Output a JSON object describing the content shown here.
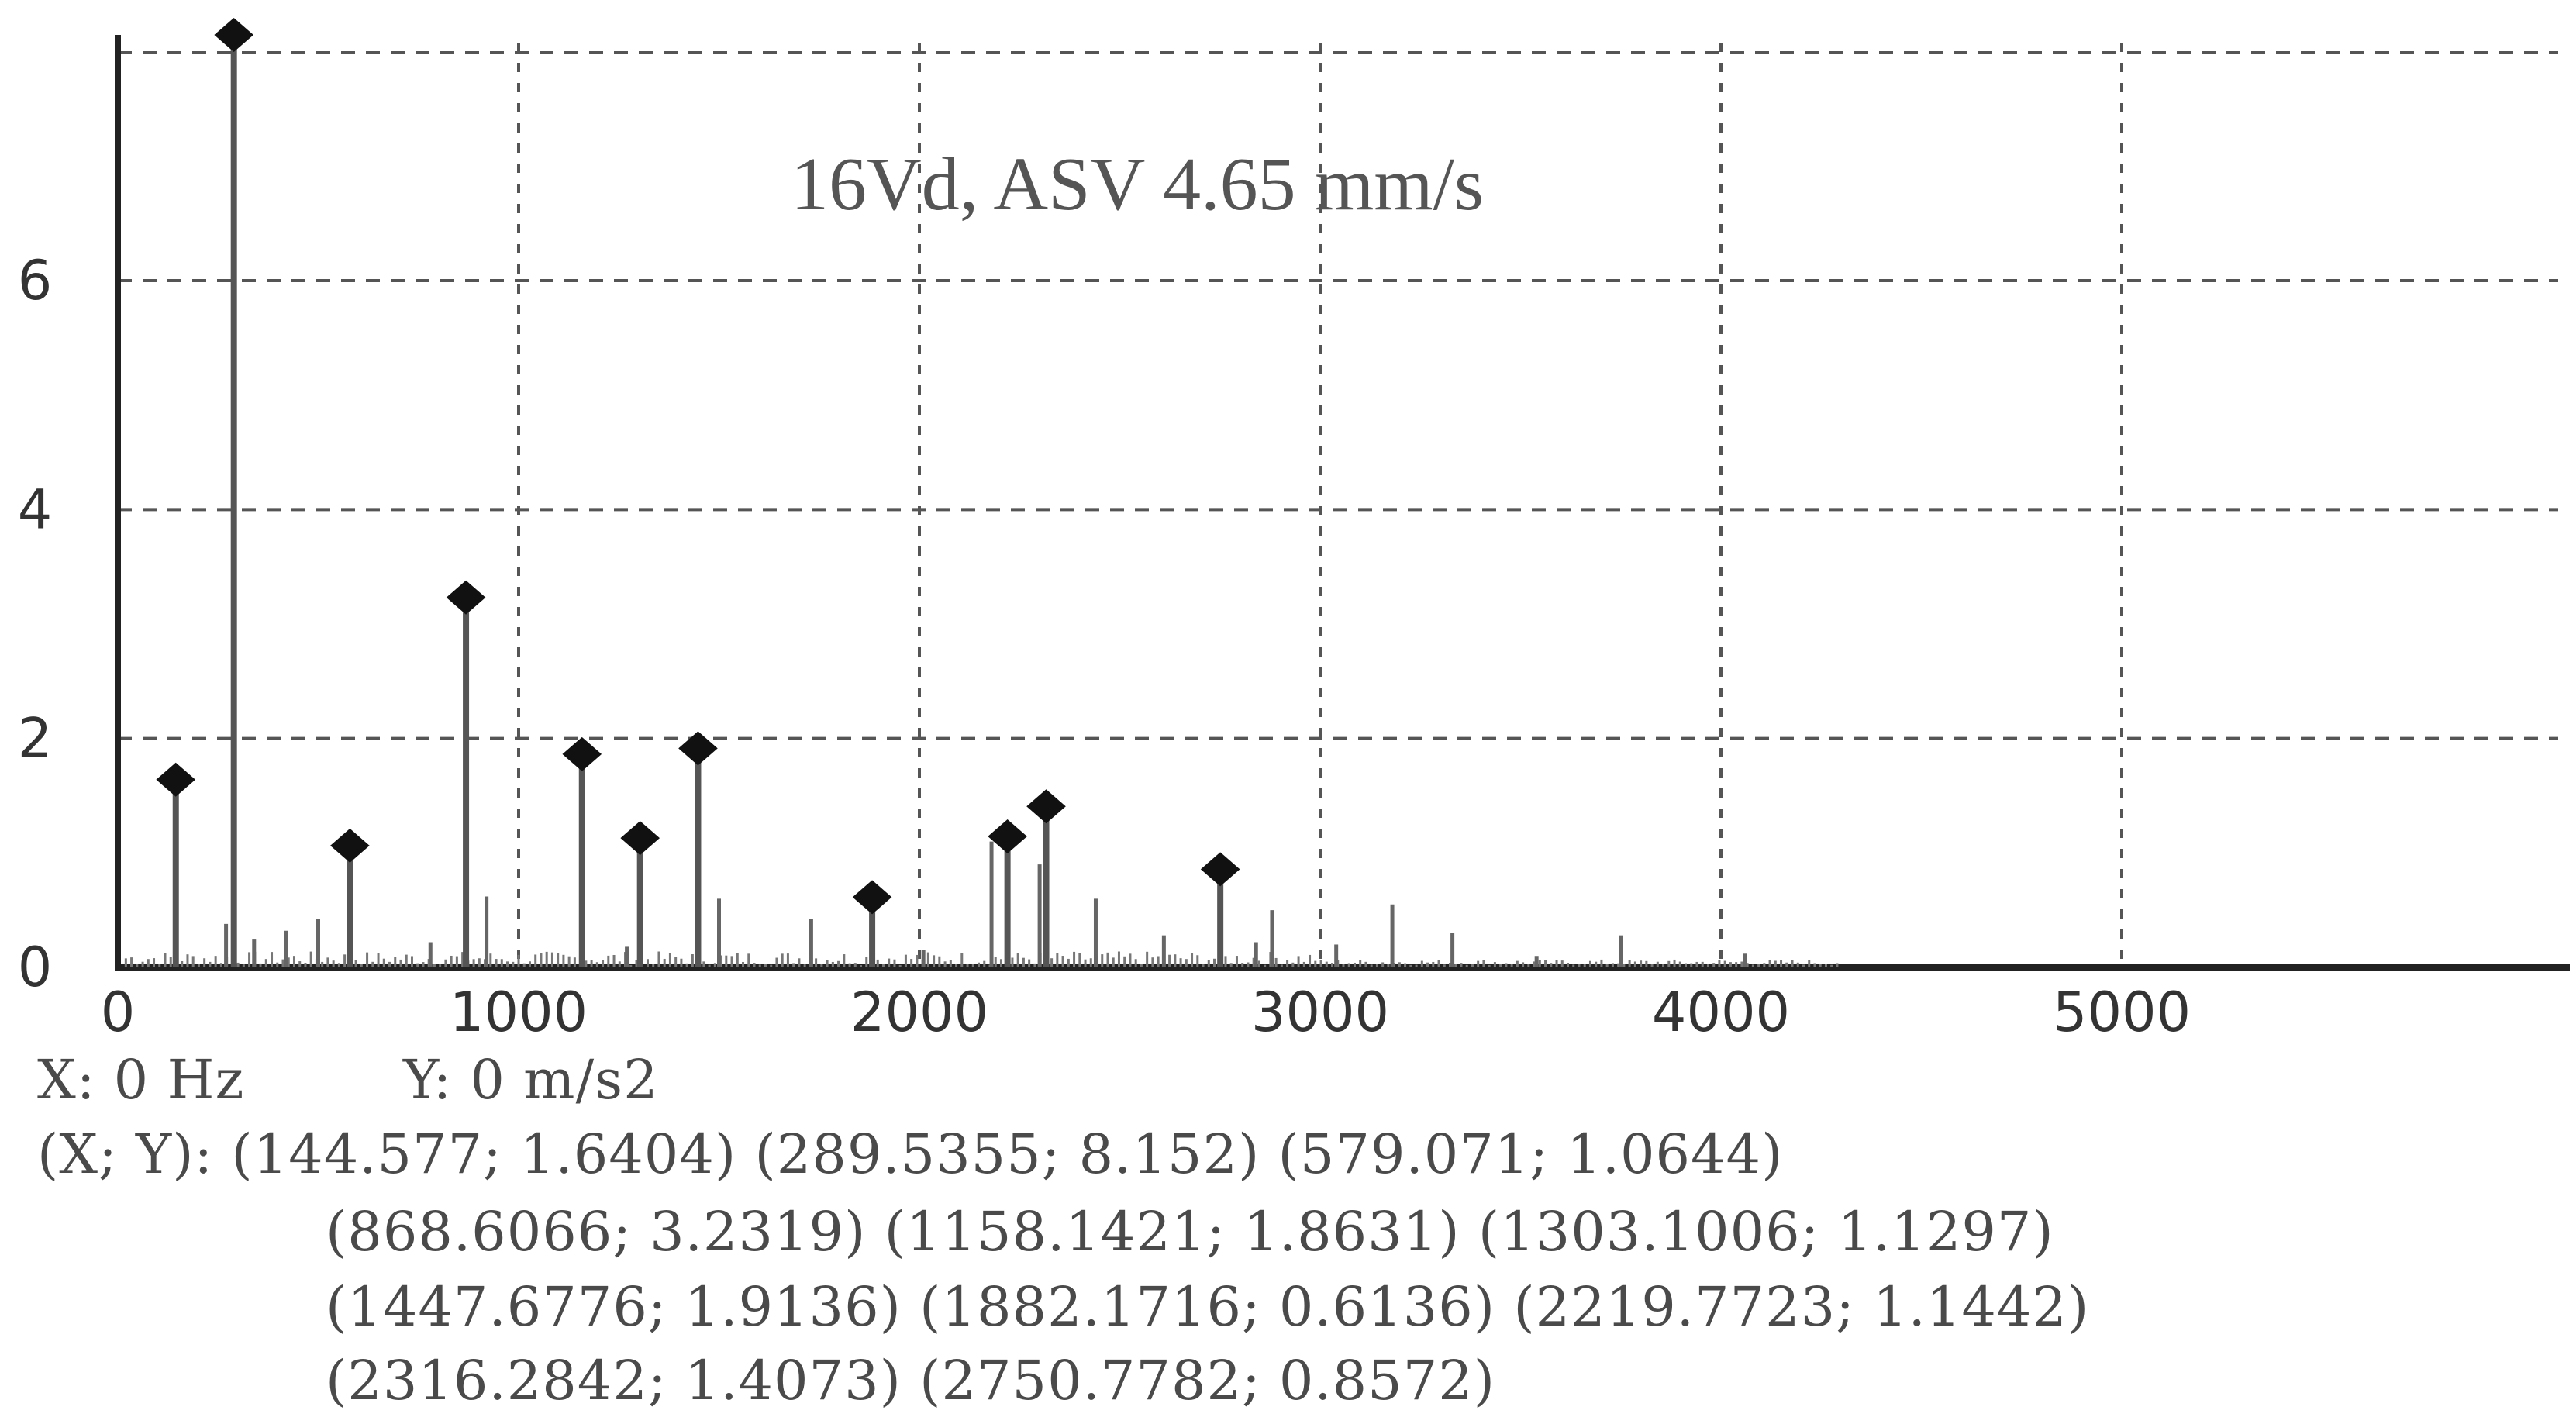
{
  "chart_data": {
    "type": "stem",
    "title": "16Vd, ASV 4.65 mm/s",
    "xlabel": "",
    "ylabel": "",
    "xlim": [
      0,
      5600
    ],
    "ylim": [
      0,
      8.2
    ],
    "x_ticks": [
      0,
      1000,
      2000,
      3000,
      4000,
      5000
    ],
    "y_ticks": [
      0,
      2,
      4,
      6
    ],
    "grid": true,
    "peaks": [
      {
        "x": 144.577,
        "y": 1.6404
      },
      {
        "x": 289.5355,
        "y": 8.152
      },
      {
        "x": 579.071,
        "y": 1.0644
      },
      {
        "x": 868.6066,
        "y": 3.2319
      },
      {
        "x": 1158.1421,
        "y": 1.8631
      },
      {
        "x": 1303.1006,
        "y": 1.1297
      },
      {
        "x": 1447.6776,
        "y": 1.9136
      },
      {
        "x": 1882.1716,
        "y": 0.6136
      },
      {
        "x": 2219.7723,
        "y": 1.1442
      },
      {
        "x": 2316.2842,
        "y": 1.4073
      },
      {
        "x": 2750.7782,
        "y": 0.8572
      }
    ],
    "minor_lines": [
      {
        "x": 2180,
        "y": 1.1
      },
      {
        "x": 2300,
        "y": 0.9
      },
      {
        "x": 920,
        "y": 0.62
      },
      {
        "x": 1500,
        "y": 0.6
      },
      {
        "x": 2440,
        "y": 0.6
      },
      {
        "x": 3180,
        "y": 0.55
      },
      {
        "x": 2880,
        "y": 0.5
      },
      {
        "x": 1730,
        "y": 0.42
      },
      {
        "x": 500,
        "y": 0.42
      },
      {
        "x": 420,
        "y": 0.32
      },
      {
        "x": 270,
        "y": 0.38
      },
      {
        "x": 3330,
        "y": 0.3
      },
      {
        "x": 3750,
        "y": 0.28
      },
      {
        "x": 2610,
        "y": 0.28
      },
      {
        "x": 2840,
        "y": 0.22
      },
      {
        "x": 3040,
        "y": 0.2
      },
      {
        "x": 1270,
        "y": 0.18
      },
      {
        "x": 780,
        "y": 0.22
      },
      {
        "x": 340,
        "y": 0.25
      },
      {
        "x": 2010,
        "y": 0.15
      },
      {
        "x": 4060,
        "y": 0.12
      },
      {
        "x": 3540,
        "y": 0.1
      }
    ]
  },
  "readout": {
    "x_text": "X: 0 Hz",
    "y_text": "Y: 0 m/s2"
  },
  "coordinates": {
    "line1": "(X; Y): (144.577; 1.6404) (289.5355; 8.152) (579.071; 1.0644)",
    "line2": "(868.6066; 3.2319) (1158.1421; 1.8631) (1303.1006; 1.1297)",
    "line3": "(1447.6776; 1.9136) (1882.1716; 0.6136) (2219.7723; 1.1442)",
    "line4": "(2316.2842; 1.4073) (2750.7782; 0.8572)"
  }
}
